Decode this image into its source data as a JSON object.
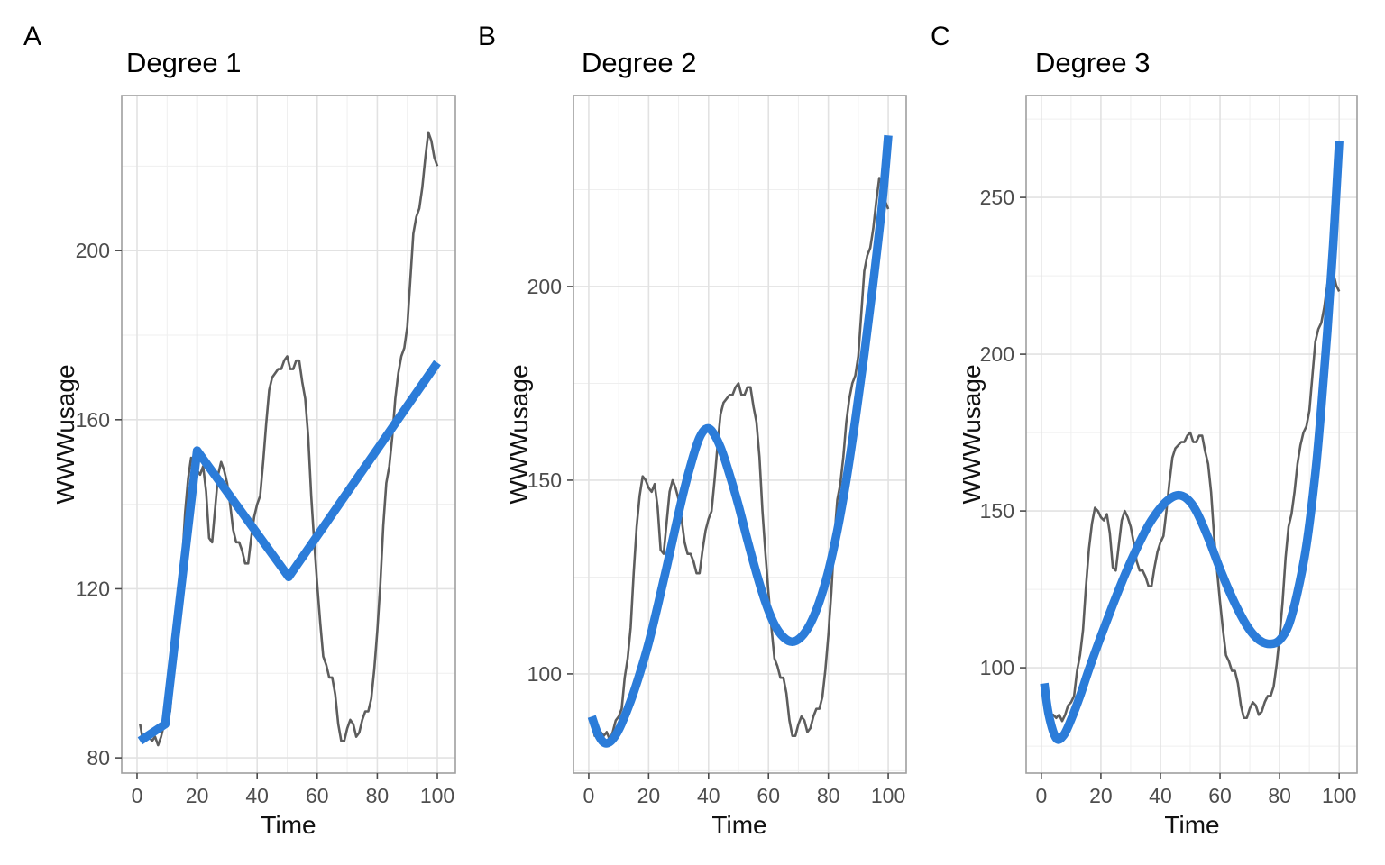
{
  "chart_data": {
    "type": "line",
    "description": "Three-panel comparison of polynomial/spline fits (degree 1, 2, 3) overlaid on the WWWusage time series",
    "colors": {
      "observed_line": "#5d5d5d",
      "fit_line": "#2b7cd9",
      "grid_major": "#e2e2e2",
      "grid_minor": "#efefef",
      "panel_border": "#9f9f9f",
      "tick_mark": "#4a4a4a",
      "tick_text": "#4d4d4d",
      "background": "#ffffff"
    },
    "observed": {
      "name": "WWWusage",
      "x_start": 1,
      "values": [
        88,
        84,
        85,
        85,
        84,
        85,
        83,
        85,
        88,
        89,
        91,
        99,
        104,
        112,
        126,
        138,
        146,
        151,
        150,
        148,
        147,
        149,
        143,
        132,
        131,
        139,
        147,
        150,
        148,
        145,
        140,
        134,
        131,
        131,
        129,
        126,
        126,
        132,
        137,
        140,
        142,
        150,
        159,
        167,
        170,
        171,
        172,
        172,
        174,
        175,
        172,
        172,
        174,
        174,
        169,
        165,
        156,
        142,
        131,
        121,
        112,
        104,
        102,
        99,
        99,
        95,
        88,
        84,
        84,
        87,
        89,
        88,
        85,
        86,
        89,
        91,
        91,
        94,
        101,
        110,
        121,
        135,
        145,
        149,
        156,
        165,
        171,
        175,
        177,
        182,
        193,
        204,
        208,
        210,
        215,
        222,
        228,
        226,
        222,
        220
      ]
    },
    "panels": [
      {
        "tag": "A",
        "title": "Degree 1",
        "xlabel": "Time",
        "ylabel": "WWWusage",
        "x_ticks": [
          0,
          20,
          40,
          60,
          80,
          100
        ],
        "y_ticks": [
          80,
          120,
          160,
          200
        ],
        "y_minor": [
          100,
          140,
          180,
          220
        ],
        "x_minor": [
          10,
          30,
          50,
          70,
          90
        ],
        "x_domain": [
          -5.1,
          106
        ],
        "y_domain": [
          76.4,
          236.7
        ],
        "fit": {
          "smooth": false,
          "points": [
            [
              1,
              84
            ],
            [
              9.4,
              88
            ],
            [
              20,
              152.7
            ],
            [
              50.5,
              122.8
            ],
            [
              100,
              173.5
            ]
          ]
        }
      },
      {
        "tag": "B",
        "title": "Degree 2",
        "xlabel": "Time",
        "ylabel": "WWWusage",
        "x_ticks": [
          0,
          20,
          40,
          60,
          80,
          100
        ],
        "y_ticks": [
          100,
          150,
          200
        ],
        "y_minor": [
          75,
          125,
          175,
          225
        ],
        "x_minor": [
          10,
          30,
          50,
          70,
          90
        ],
        "x_domain": [
          -5.1,
          106
        ],
        "y_domain": [
          74.4,
          249.3
        ],
        "fit": {
          "smooth": true,
          "points": [
            [
              1,
              89
            ],
            [
              3,
              84.6
            ],
            [
              5,
              82.3
            ],
            [
              7,
              82.4
            ],
            [
              9,
              84.2
            ],
            [
              11,
              87.2
            ],
            [
              14,
              93
            ],
            [
              17,
              100
            ],
            [
              20,
              108
            ],
            [
              23,
              117.5
            ],
            [
              26,
              127.5
            ],
            [
              29,
              138
            ],
            [
              32,
              148
            ],
            [
              35,
              156.5
            ],
            [
              37,
              161
            ],
            [
              39,
              163.2
            ],
            [
              41,
              162.8
            ],
            [
              44,
              158.5
            ],
            [
              47,
              151.5
            ],
            [
              50,
              143.5
            ],
            [
              53,
              134.5
            ],
            [
              56,
              126
            ],
            [
              59,
              118.5
            ],
            [
              62,
              112.8
            ],
            [
              65,
              109.5
            ],
            [
              68,
              108.3
            ],
            [
              71,
              109.6
            ],
            [
              74,
              113
            ],
            [
              77,
              118.6
            ],
            [
              80,
              126.5
            ],
            [
              83,
              137
            ],
            [
              86,
              150
            ],
            [
              89,
              165.5
            ],
            [
              92,
              182.5
            ],
            [
              95,
              201
            ],
            [
              98,
              221.5
            ],
            [
              100,
              239
            ]
          ]
        }
      },
      {
        "tag": "C",
        "title": "Degree 3",
        "xlabel": "Time",
        "ylabel": "WWWusage",
        "x_ticks": [
          0,
          20,
          40,
          60,
          80,
          100
        ],
        "y_ticks": [
          100,
          150,
          200,
          250
        ],
        "y_minor": [
          75,
          125,
          175,
          225,
          275
        ],
        "x_minor": [
          10,
          30,
          50,
          70,
          90
        ],
        "x_domain": [
          -5.1,
          106
        ],
        "y_domain": [
          66.4,
          282.5
        ],
        "fit": {
          "smooth": true,
          "points": [
            [
              1,
              95
            ],
            [
              2.5,
              85
            ],
            [
              5,
              77.5
            ],
            [
              7.5,
              78.5
            ],
            [
              10,
              83.5
            ],
            [
              13,
              91
            ],
            [
              16,
              99.5
            ],
            [
              20,
              110
            ],
            [
              24,
              120
            ],
            [
              28,
              129.5
            ],
            [
              32,
              138
            ],
            [
              36,
              145.5
            ],
            [
              40,
              151
            ],
            [
              43,
              153.8
            ],
            [
              46,
              155
            ],
            [
              49,
              153.8
            ],
            [
              52,
              150
            ],
            [
              56,
              141.5
            ],
            [
              60,
              131.5
            ],
            [
              64,
              122.5
            ],
            [
              68,
              115
            ],
            [
              71,
              110.8
            ],
            [
              74,
              108.3
            ],
            [
              77,
              107.6
            ],
            [
              80,
              108.8
            ],
            [
              83,
              113.5
            ],
            [
              86,
              124
            ],
            [
              89,
              139
            ],
            [
              92,
              162
            ],
            [
              94,
              183
            ],
            [
              96,
              207
            ],
            [
              98,
              235
            ],
            [
              100,
              268
            ]
          ]
        }
      }
    ]
  }
}
